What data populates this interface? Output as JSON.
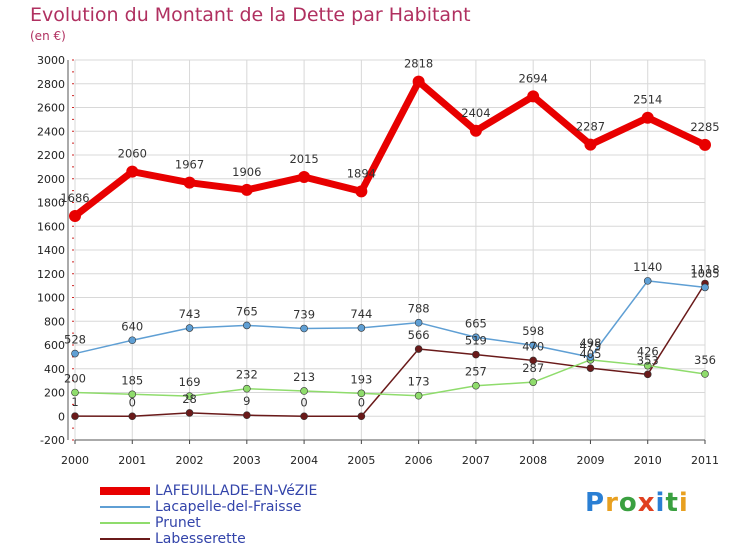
{
  "header": {
    "title": "Evolution du Montant de la Dette par Habitant",
    "unit": "(en €)"
  },
  "brand": {
    "logo_letters": [
      "P",
      "r",
      "o",
      "x",
      "i",
      "t",
      "i"
    ],
    "logo_colors": [
      "#2a7fd4",
      "#e8a020",
      "#3aa040",
      "#e04020",
      "#2a7fd4",
      "#3aa040",
      "#e8a020"
    ]
  },
  "chart_data": {
    "type": "line",
    "title": "Evolution du Montant de la Dette par Habitant",
    "ylabel": "(en €)",
    "xlabel": "",
    "x": [
      "2000",
      "2001",
      "2002",
      "2003",
      "2004",
      "2005",
      "2006",
      "2007",
      "2008",
      "2009",
      "2010",
      "2011"
    ],
    "ylim": [
      -200,
      3000
    ],
    "yticks": [
      "-200",
      "0",
      "200",
      "400",
      "600",
      "800",
      "1000",
      "1200",
      "1400",
      "1600",
      "1800",
      "2000",
      "2200",
      "2400",
      "2600",
      "2800",
      "3000"
    ],
    "grid": true,
    "legend_position": "bottom-left",
    "series": [
      {
        "name": "LAFEUILLADE-EN-VéZIE",
        "color": "#e80000",
        "values": [
          1686,
          2060,
          1967,
          1906,
          2015,
          1894,
          2818,
          2404,
          2694,
          2287,
          2514,
          2285
        ],
        "labels": [
          "1686",
          "2060",
          "1967",
          "1906",
          "2015",
          "1894",
          "2818",
          "2404",
          "2694",
          "2287",
          "2514",
          "2285"
        ]
      },
      {
        "name": "Lacapelle-del-Fraisse",
        "color": "#5f9fd4",
        "values": [
          528,
          640,
          743,
          765,
          739,
          744,
          788,
          665,
          598,
          498,
          1140,
          1085
        ],
        "labels": [
          "528",
          "640",
          "743",
          "765",
          "739",
          "744",
          "788",
          "665",
          "598",
          "498",
          "1140",
          "1085"
        ]
      },
      {
        "name": "Prunet",
        "color": "#8fdc6c",
        "values": [
          200,
          185,
          169,
          232,
          213,
          193,
          173,
          257,
          287,
          475,
          426,
          356
        ],
        "labels": [
          "200",
          "185",
          "169",
          "232",
          "213",
          "193",
          "173",
          "257",
          "287",
          "475",
          "426",
          "356"
        ]
      },
      {
        "name": "Labesserette",
        "color": "#6a1a1a",
        "values": [
          1,
          0,
          28,
          9,
          0,
          0,
          566,
          519,
          470,
          405,
          353,
          1118
        ],
        "labels": [
          "1",
          "0",
          "28",
          "9",
          "0",
          "0",
          "566",
          "519",
          "470",
          "405",
          "353",
          "1118"
        ]
      }
    ]
  }
}
